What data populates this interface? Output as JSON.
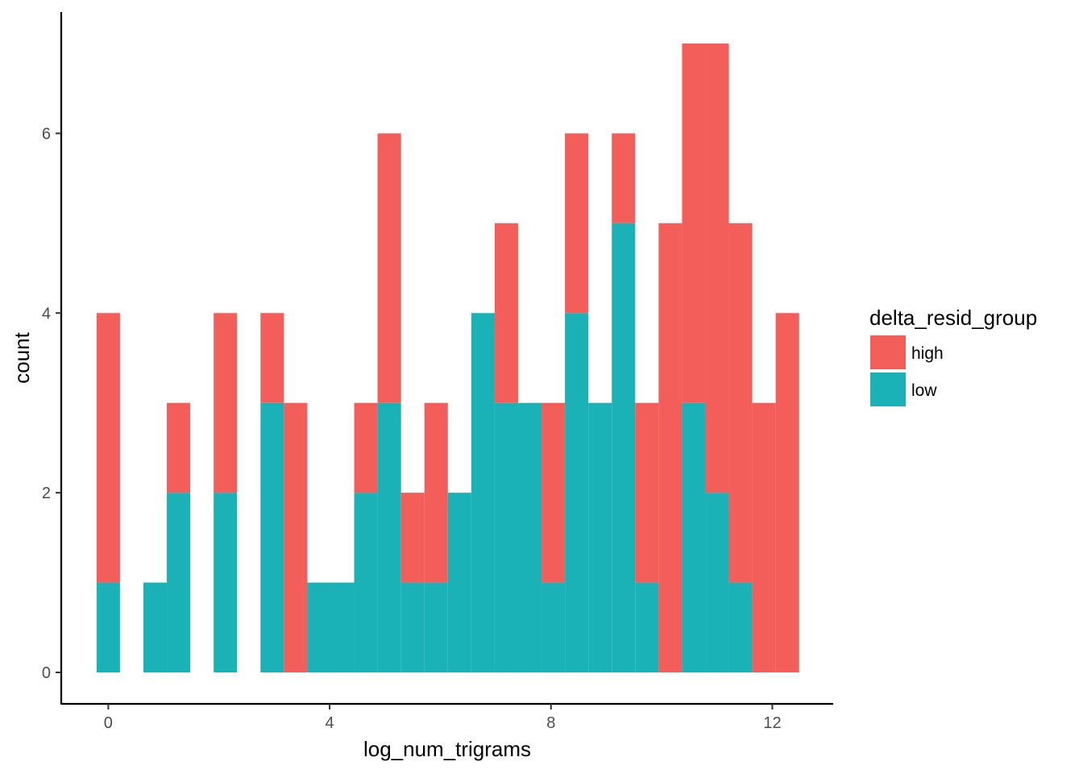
{
  "chart_data": {
    "type": "bar",
    "stacked": true,
    "histogram": true,
    "xlabel": "log_num_trigrams",
    "ylabel": "count",
    "xlim": [
      -0.85,
      13.1
    ],
    "ylim": [
      -0.35,
      7.35
    ],
    "x_ticks": [
      0,
      4,
      8,
      12
    ],
    "y_ticks": [
      0,
      2,
      4,
      6
    ],
    "bin_width": 0.4232,
    "bin_centers": [
      0.0,
      0.4232,
      0.8464,
      1.2696,
      1.6928,
      2.116,
      2.5392,
      2.9624,
      3.3856,
      3.8088,
      4.232,
      4.6552,
      5.0784,
      5.5016,
      5.9248,
      6.348,
      6.7712,
      7.1944,
      7.6176,
      8.0408,
      8.464,
      8.8872,
      9.3104,
      9.7336,
      10.1568,
      10.58,
      11.0032,
      11.4264,
      11.8496,
      12.2728
    ],
    "series": [
      {
        "name": "low",
        "color": "#1AB2B6",
        "values": [
          1,
          0,
          1,
          2,
          0,
          2,
          0,
          3,
          0,
          1,
          1,
          2,
          3,
          1,
          1,
          2,
          4,
          3,
          3,
          1,
          4,
          3,
          5,
          1,
          0,
          3,
          2,
          1,
          0,
          0
        ]
      },
      {
        "name": "high",
        "color": "#F35E5A",
        "values": [
          3,
          0,
          0,
          1,
          0,
          2,
          0,
          1,
          3,
          0,
          0,
          1,
          3,
          1,
          2,
          0,
          0,
          2,
          0,
          2,
          2,
          0,
          1,
          2,
          5,
          4,
          5,
          4,
          3,
          4
        ]
      }
    ],
    "legend": {
      "title": "delta_resid_group",
      "position": "right",
      "entries": [
        {
          "label": "high",
          "color": "#F35E5A"
        },
        {
          "label": "low",
          "color": "#1AB2B6"
        }
      ]
    },
    "grid": false
  }
}
